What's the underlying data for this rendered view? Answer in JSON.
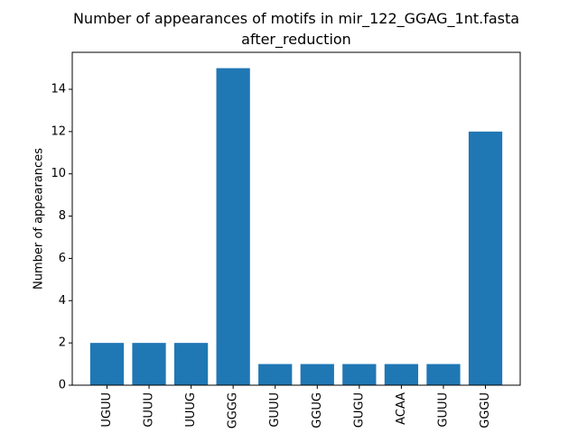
{
  "chart_data": {
    "type": "bar",
    "title_lines": [
      "Number of appearances of motifs in mir_122_GGAG_1nt.fasta",
      "after_reduction"
    ],
    "xlabel": "",
    "ylabel": "Number of appearances",
    "categories": [
      "UGUU",
      "GUUU",
      "UUUG",
      "GGGG",
      "GUUU",
      "GGUG",
      "GUGU",
      "ACAA",
      "GUUU",
      "GGGU"
    ],
    "values": [
      2,
      2,
      2,
      15,
      1,
      1,
      1,
      1,
      1,
      12
    ],
    "ylim": [
      0,
      15.75
    ],
    "yticks": [
      0,
      2,
      4,
      6,
      8,
      10,
      12,
      14
    ],
    "xtick_rotation": "vertical",
    "grid": false,
    "legend": "none",
    "bar_color": "#1f77b4"
  }
}
